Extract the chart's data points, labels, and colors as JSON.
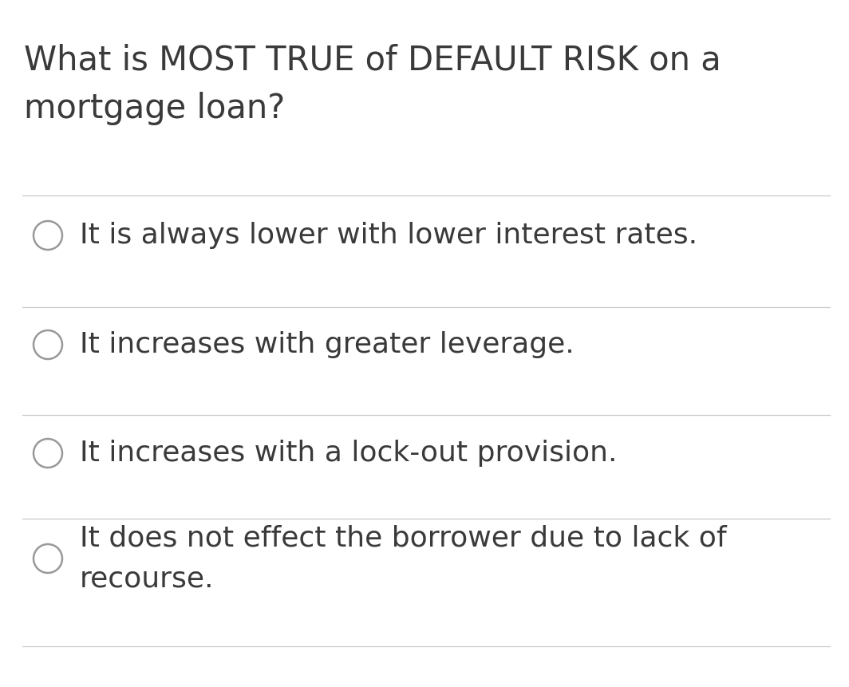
{
  "background_color": "#ffffff",
  "question_line1": "What is MOST TRUE of DEFAULT RISK on a",
  "question_line2": "mortgage loan?",
  "options": [
    "It is always lower with lower interest rates.",
    "It increases with greater leverage.",
    "It increases with a lock-out provision.",
    "It does not effect the borrower due to lack of\nrecourse."
  ],
  "divider_color": "#c8c8c8",
  "text_color": "#3a3a3a",
  "circle_edge_color": "#999999",
  "question_fontsize": 30,
  "option_fontsize": 26,
  "fig_width": 10.64,
  "fig_height": 8.61,
  "dpi": 100
}
